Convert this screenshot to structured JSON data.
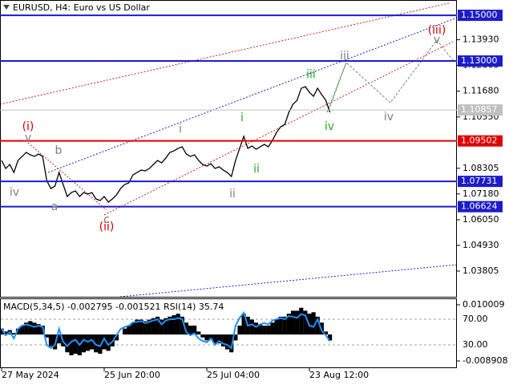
{
  "chart_data": [
    {
      "type": "line",
      "title": "EURUSD, H4:  Euro vs US Dollar",
      "x": [
        "27 May 2024",
        null,
        null,
        null,
        null,
        null,
        null,
        null,
        null,
        null,
        null,
        null,
        null,
        null,
        null,
        null,
        null,
        null,
        null,
        null,
        null,
        null,
        null,
        null,
        null,
        "25 Jun 20:00",
        null,
        null,
        null,
        null,
        null,
        null,
        null,
        null,
        null,
        null,
        null,
        null,
        null,
        null,
        null,
        null,
        null,
        null,
        null,
        null,
        null,
        null,
        null,
        null,
        "25 Jul 04:00",
        null,
        null,
        null,
        null,
        null,
        null,
        null,
        null,
        null,
        null,
        null,
        null,
        null,
        null,
        null,
        null,
        null,
        null,
        null,
        null,
        null,
        null,
        null,
        null,
        "23 Aug 12:00",
        null,
        null,
        null,
        null,
        null
      ],
      "values": [
        1.08647,
        1.08296,
        1.08472,
        1.08121,
        1.08647,
        1.08822,
        1.08998,
        1.08893,
        1.08822,
        1.08928,
        1.08822,
        1.0777,
        1.07418,
        1.07524,
        1.08121,
        1.07594,
        1.07068,
        1.07243,
        1.07313,
        1.07068,
        1.07243,
        1.07173,
        1.07243,
        1.06962,
        1.06892,
        1.07068,
        1.06822,
        1.06962,
        1.07138,
        1.07418,
        1.07594,
        1.07664,
        1.08015,
        1.08121,
        1.08226,
        1.08191,
        1.08296,
        1.08472,
        1.08647,
        1.08542,
        1.08752,
        1.08998,
        1.09068,
        1.09174,
        1.09244,
        1.08928,
        1.08822,
        1.08893,
        1.08647,
        1.08472,
        1.08401,
        1.08507,
        1.08296,
        1.08366,
        1.08226,
        1.08121,
        1.07945,
        1.08647,
        1.09174,
        1.097,
        1.09174,
        1.09279,
        1.09139,
        1.09244,
        1.09349,
        1.09244,
        1.09525,
        1.09876,
        1.10121,
        1.10227,
        1.10753,
        1.11104,
        1.1128,
        1.11806,
        1.11876,
        1.11631,
        1.11455,
        1.11806,
        1.11525,
        1.1128,
        1.10753
      ],
      "color": "#000000",
      "ylim": [
        1.0268,
        1.1567
      ],
      "yticks": [
        {
          "value": 1.1393,
          "label": "1.13930"
        },
        {
          "value": 1.12805,
          "label": "1.12805"
        },
        {
          "value": 1.1168,
          "label": "1.11680"
        },
        {
          "value": 1.1055,
          "label": "1.10550"
        },
        {
          "value": 1.08305,
          "label": "1.08305"
        },
        {
          "value": 1.0718,
          "label": "1.07180"
        },
        {
          "value": 1.0605,
          "label": "1.06050"
        },
        {
          "value": 1.0493,
          "label": "1.04930"
        },
        {
          "value": 1.03805,
          "label": "1.03805"
        }
      ],
      "levels": [
        {
          "value": 1.15,
          "label": "1.15000",
          "color": "#1c1cc8"
        },
        {
          "value": 1.13,
          "label": "1.13000",
          "color": "#1c1cc8"
        },
        {
          "value": 1.10857,
          "label": "1.10857",
          "color": "#c0c0c0"
        },
        {
          "value": 1.09502,
          "label": "1.09502",
          "color": "#e00000"
        },
        {
          "value": 1.07731,
          "label": "1.07731",
          "color": "#1c1cc8"
        },
        {
          "value": 1.06624,
          "label": "1.06624",
          "color": "#1c1cc8"
        }
      ],
      "annotations": [
        {
          "text": "(i)",
          "color": "#cc0000"
        },
        {
          "text": "v",
          "color": "#808080"
        },
        {
          "text": "b",
          "color": "#808080"
        },
        {
          "text": "iv",
          "color": "#808080"
        },
        {
          "text": "a",
          "color": "#808080"
        },
        {
          "text": "c",
          "color": "#808080"
        },
        {
          "text": "(ii)",
          "color": "#cc0000"
        },
        {
          "text": "i",
          "color": "#808080"
        },
        {
          "text": "i",
          "color": "#22aa22"
        },
        {
          "text": "ii",
          "color": "#22aa22"
        },
        {
          "text": "ii",
          "color": "#808080"
        },
        {
          "text": "iii",
          "color": "#22aa22"
        },
        {
          "text": "iii",
          "color": "#808080"
        },
        {
          "text": "iv",
          "color": "#22aa22"
        },
        {
          "text": "iv",
          "color": "#808080"
        },
        {
          "text": "v",
          "color": "#808080"
        },
        {
          "text": "(iii)",
          "color": "#cc0000"
        }
      ]
    },
    {
      "type": "bar",
      "title": "MACD(5,34,5) -0.002795 -0.001521 RSI(14) 35.74",
      "ylim": [
        -0.01107,
        0.01217
      ],
      "yticks": [
        0.010009,
        -0.008908
      ],
      "y2lim": [
        -5,
        102.5
      ],
      "y2ticks": [
        {
          "value": 70,
          "label": "70.00"
        },
        {
          "value": 30,
          "label": "30.00"
        }
      ],
      "series": [
        {
          "type": "bar",
          "color": "#000000",
          "values": [
            0.002,
            0.001,
            0.0015,
            0.0005,
            0.002,
            0.003,
            0.004,
            0.0045,
            0.004,
            0.0035,
            0.003,
            -0.001,
            -0.004,
            -0.005,
            -0.003,
            -0.004,
            -0.006,
            -0.007,
            -0.0065,
            -0.007,
            -0.006,
            -0.0055,
            -0.005,
            -0.006,
            -0.0065,
            -0.005,
            -0.0055,
            -0.004,
            -0.002,
            0.0,
            0.002,
            0.003,
            0.004,
            0.005,
            0.005,
            0.0045,
            0.005,
            0.0055,
            0.006,
            0.005,
            0.0055,
            0.006,
            0.0065,
            0.007,
            0.006,
            0.004,
            0.003,
            0.003,
            0.001,
            -0.001,
            -0.002,
            -0.0015,
            -0.003,
            -0.003,
            -0.004,
            -0.005,
            -0.006,
            -0.002,
            0.003,
            0.007,
            0.006,
            0.005,
            0.004,
            0.0035,
            0.003,
            0.003,
            0.004,
            0.005,
            0.006,
            0.006,
            0.007,
            0.008,
            0.008,
            0.009,
            0.008,
            0.007,
            0.0075,
            0.006,
            0.004,
            0.001,
            -0.002
          ]
        },
        {
          "type": "line",
          "axis": "y2",
          "color": "#1e90ff",
          "values": [
            55,
            45,
            50,
            40,
            55,
            60,
            62,
            60,
            58,
            60,
            58,
            30,
            25,
            30,
            55,
            35,
            28,
            35,
            38,
            30,
            38,
            35,
            38,
            30,
            28,
            40,
            30,
            35,
            45,
            55,
            58,
            60,
            65,
            66,
            67,
            64,
            66,
            68,
            70,
            62,
            68,
            70,
            70,
            72,
            70,
            50,
            45,
            48,
            40,
            36,
            34,
            40,
            30,
            36,
            32,
            30,
            25,
            60,
            72,
            80,
            60,
            62,
            58,
            62,
            64,
            62,
            68,
            70,
            72,
            70,
            75,
            74,
            72,
            78,
            76,
            60,
            58,
            70,
            52,
            45,
            35.74
          ]
        }
      ]
    }
  ]
}
